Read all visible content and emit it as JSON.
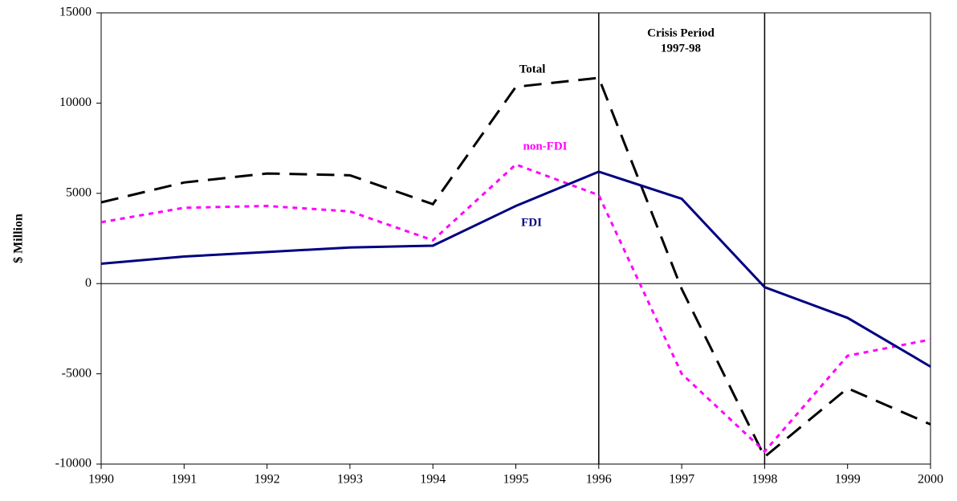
{
  "chart_data": {
    "type": "line",
    "y_label": "$ Million",
    "x": [
      1990,
      1991,
      1992,
      1993,
      1994,
      1995,
      1996,
      1997,
      1998,
      1999,
      2000
    ],
    "xlim": [
      1990,
      2000
    ],
    "xticks": [
      1990,
      1991,
      1992,
      1993,
      1994,
      1995,
      1996,
      1997,
      1998,
      1999,
      2000
    ],
    "ylim": [
      -10000,
      15000
    ],
    "yticks": [
      -10000,
      -5000,
      0,
      5000,
      10000,
      15000
    ],
    "vlines": [
      1996,
      1998
    ],
    "annotations": {
      "crisis": "Crisis Period",
      "crisis_years": "1997-98"
    },
    "series": [
      {
        "name": "Total",
        "color": "#000000",
        "dash": "22 12",
        "values": [
          4500,
          5600,
          6100,
          6000,
          4400,
          10900,
          11400,
          -300,
          -9600,
          -5800,
          -7800
        ]
      },
      {
        "name": "non-FDI",
        "color": "#ff00ff",
        "dash": "6 6",
        "values": [
          3400,
          4200,
          4300,
          4000,
          2400,
          6600,
          4900,
          -5000,
          -9300,
          -4000,
          -3100
        ]
      },
      {
        "name": "FDI",
        "color": "#000080",
        "dash": "none",
        "values": [
          1100,
          1500,
          1750,
          2000,
          2100,
          4300,
          6200,
          4700,
          -200,
          -1900,
          -4600
        ]
      }
    ]
  }
}
